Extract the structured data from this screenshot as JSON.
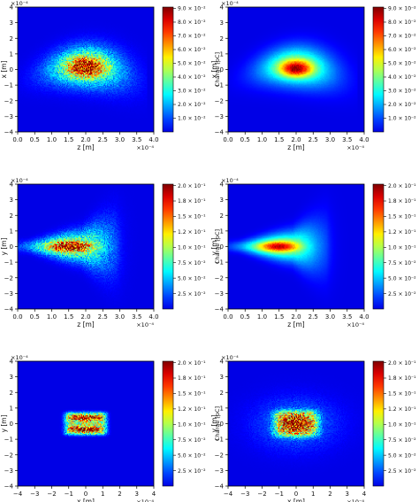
{
  "chart_data": [
    {
      "type": "heatmap",
      "xlabel": "z [m]",
      "ylabel": "x [m]",
      "x_multiplier": "×10⁻⁴",
      "y_multiplier": "×10⁻⁴",
      "xlim": [
        0,
        4
      ],
      "ylim": [
        -4,
        4
      ],
      "xticks": [
        "0.0",
        "0.5",
        "1.0",
        "1.5",
        "2.0",
        "2.5",
        "3.0",
        "3.5",
        "4.0"
      ],
      "yticks": [
        "4",
        "3",
        "2",
        "1",
        "0",
        "−1",
        "−2",
        "−3",
        "−4"
      ],
      "colorbar": {
        "label": "Charge [pC]",
        "ticks": [
          "9.0 × 10⁻²",
          "8.0 × 10⁻²",
          "7.0 × 10⁻²",
          "6.0 × 10⁻²",
          "5.0 × 10⁻²",
          "4.0 × 10⁻²",
          "3.0 × 10⁻²",
          "2.0 × 10⁻²",
          "1.0 × 10⁻²"
        ],
        "max": 0.09
      },
      "distribution": "arc-shaped beam, peak near z=2.0, x=0.2, speckled (simulated particles)"
    },
    {
      "type": "heatmap",
      "xlabel": "z [m]",
      "ylabel": "x [m]",
      "x_multiplier": "×10⁻⁴",
      "y_multiplier": "×10⁻⁴",
      "xlim": [
        0,
        4
      ],
      "ylim": [
        -4,
        4
      ],
      "xticks": [
        "0.0",
        "0.5",
        "1.0",
        "1.5",
        "2.0",
        "2.5",
        "3.0",
        "3.5",
        "4.0"
      ],
      "yticks": [
        "4",
        "3",
        "2",
        "1",
        "0",
        "−1",
        "−2",
        "−3",
        "−4"
      ],
      "colorbar": {
        "label": "Charge [pC]",
        "ticks": [
          "9.0 × 10⁻²",
          "8.0 × 10⁻²",
          "7.0 × 10⁻²",
          "6.0 × 10⁻²",
          "5.0 × 10⁻²",
          "4.0 × 10⁻²",
          "3.0 × 10⁻²",
          "2.0 × 10⁻²",
          "1.0 × 10⁻²"
        ],
        "max": 0.09
      },
      "distribution": "arc-shaped beam, peak near z=2.0, x=0.1, smooth (model)"
    },
    {
      "type": "heatmap",
      "xlabel": "z [m]",
      "ylabel": "y [m]",
      "x_multiplier": "×10⁻⁴",
      "y_multiplier": "×10⁻⁴",
      "xlim": [
        0,
        4
      ],
      "ylim": [
        -4,
        4
      ],
      "xticks": [
        "0.0",
        "0.5",
        "1.0",
        "1.5",
        "2.0",
        "2.5",
        "3.0",
        "3.5",
        "4.0"
      ],
      "yticks": [
        "4",
        "3",
        "2",
        "1",
        "0",
        "−1",
        "−2",
        "−3",
        "−4"
      ],
      "colorbar": {
        "label": "Charge [pC]",
        "ticks": [
          "2.0 × 10⁻¹",
          "1.8 × 10⁻¹",
          "1.5 × 10⁻¹",
          "1.2 × 10⁻¹",
          "1.0 × 10⁻¹",
          "7.5 × 10⁻²",
          "5.0 × 10⁻²",
          "2.5 × 10⁻²"
        ],
        "max": 0.2
      },
      "distribution": "horizontal wedge flaring toward z=2.5, peak near z=1.6, y=0, speckled"
    },
    {
      "type": "heatmap",
      "xlabel": "z [m]",
      "ylabel": "y [m]",
      "x_multiplier": "×10⁻⁴",
      "y_multiplier": "×10⁻⁴",
      "xlim": [
        0,
        4
      ],
      "ylim": [
        -4,
        4
      ],
      "xticks": [
        "0.0",
        "0.5",
        "1.0",
        "1.5",
        "2.0",
        "2.5",
        "3.0",
        "3.5",
        "4.0"
      ],
      "yticks": [
        "4",
        "3",
        "2",
        "1",
        "0",
        "−1",
        "−2",
        "−3",
        "−4"
      ],
      "colorbar": {
        "label": "Charge [pC]",
        "ticks": [
          "2.0 × 10⁻¹",
          "1.8 × 10⁻¹",
          "1.5 × 10⁻¹",
          "1.2 × 10⁻¹",
          "1.0 × 10⁻¹",
          "7.5 × 10⁻²",
          "5.0 × 10⁻²",
          "2.5 × 10⁻²"
        ],
        "max": 0.2
      },
      "distribution": "horizontal wedge flaring toward z=2.5, peak near z=1.6, y=0, smooth"
    },
    {
      "type": "heatmap",
      "xlabel": "x [m]",
      "ylabel": "y [m]",
      "x_multiplier": "×10⁻⁴",
      "y_multiplier": "×10⁻⁴",
      "xlim": [
        -4,
        4
      ],
      "ylim": [
        -4,
        4
      ],
      "xticks": [
        "−4",
        "−3",
        "−2",
        "−1",
        "0",
        "1",
        "2",
        "3",
        "4"
      ],
      "yticks": [
        "4",
        "3",
        "2",
        "1",
        "0",
        "−1",
        "−2",
        "−3",
        "−4"
      ],
      "colorbar": {
        "label": "Charge [pC]",
        "ticks": [
          "2.0 × 10⁻¹",
          "1.8 × 10⁻¹",
          "1.5 × 10⁻¹",
          "1.2 × 10⁻¹",
          "1.0 × 10⁻¹",
          "7.5 × 10⁻²",
          "5.0 × 10⁻²",
          "2.5 × 10⁻²"
        ],
        "max": 0.2
      },
      "distribution": "rectangular blob x∈[-1.3,1.3], y∈[-0.8,0.8], two bright bands at y≈±0.35, speckled"
    },
    {
      "type": "heatmap",
      "xlabel": "x [m]",
      "ylabel": "y [m]",
      "x_multiplier": "×10⁻⁴",
      "y_multiplier": "×10⁻⁴",
      "xlim": [
        -4,
        4
      ],
      "ylim": [
        -4,
        4
      ],
      "xticks": [
        "−4",
        "−3",
        "−2",
        "−1",
        "0",
        "1",
        "2",
        "3",
        "4"
      ],
      "yticks": [
        "4",
        "3",
        "2",
        "1",
        "0",
        "−1",
        "−2",
        "−3",
        "−4"
      ],
      "colorbar": {
        "label": "Charge [pC]",
        "ticks": [
          "2.0 × 10⁻¹",
          "1.8 × 10⁻¹",
          "1.5 × 10⁻¹",
          "1.2 × 10⁻¹",
          "1.0 × 10⁻¹",
          "7.5 × 10⁻²",
          "5.0 × 10⁻²",
          "2.5 × 10⁻²"
        ],
        "max": 0.2
      },
      "distribution": "rectangular blob with wider halo, peak at center, speckled"
    }
  ]
}
